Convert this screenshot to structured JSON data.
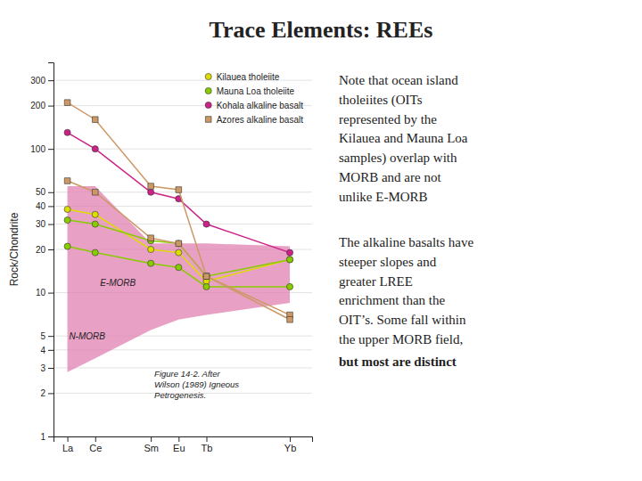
{
  "chart_data": {
    "type": "line",
    "title": "Trace Elements: REEs",
    "ylabel": "Rock/Chondrite",
    "x": [
      0,
      1,
      3,
      4,
      5,
      8
    ],
    "xlim": [
      -0.5,
      8.8
    ],
    "xticks": [
      {
        "value": 0,
        "label": "La"
      },
      {
        "value": 1,
        "label": "Ce"
      },
      {
        "value": 3,
        "label": "Sm"
      },
      {
        "value": 4,
        "label": "Eu"
      },
      {
        "value": 5,
        "label": "Tb"
      },
      {
        "value": 8,
        "label": "Yb"
      }
    ],
    "ylim": [
      1,
      400
    ],
    "yticks": [
      1,
      2,
      3,
      4,
      5,
      10,
      20,
      30,
      40,
      50,
      100,
      200,
      300
    ],
    "log": "y",
    "grid": true,
    "legend": "upper-right",
    "series": [
      {
        "type": "area",
        "color": "#e080b0",
        "values": [
          55,
          55,
          22,
          22,
          22,
          21
        ],
        "lower": [
          2.8,
          3.5,
          5.5,
          6.5,
          7.0,
          8.5
        ]
      },
      {
        "name": "Kilauea tholeiite",
        "color": "#dddd00",
        "marker": "circle",
        "values": [
          38,
          35,
          20,
          19,
          12,
          17
        ]
      },
      {
        "name": "Mauna Loa tholeiite",
        "color": "#88cc00",
        "marker": "circle",
        "values": [
          21,
          19,
          16,
          15,
          11,
          11
        ]
      },
      {
        "color": "#88cc00",
        "marker": "circle",
        "values": [
          32,
          30,
          23,
          22,
          13,
          17
        ]
      },
      {
        "name": "Kohala alkaline basalt",
        "color": "#cc2288",
        "marker": "circle",
        "values": [
          130,
          100,
          50,
          45,
          30,
          19
        ]
      },
      {
        "name": "Azores alkaline basalt",
        "color": "#cc9966",
        "marker": "square",
        "values": [
          210,
          160,
          55,
          52,
          13,
          7
        ]
      },
      {
        "color": "#cc9966",
        "marker": "square",
        "values": [
          60,
          50,
          24,
          22,
          13,
          6.5
        ]
      }
    ],
    "annotations": [
      "N-MORB",
      "E-MORB",
      "Figure 14-2. After\nWilson (1989) Igneous\nPetrogenesis.",
      "Note that ocean island\ntholeiites (OITs\nrepresented by the\nKilauea and Mauna Loa\nsamples) overlap with\nMORB and are not\nunlike E-MORB",
      "The alkaline basalts have\nsteeper slopes and\ngreater LREE\nenrichment than the\nOIT’s. Some fall within\nthe upper MORB field,",
      "but most are distinct"
    ]
  }
}
